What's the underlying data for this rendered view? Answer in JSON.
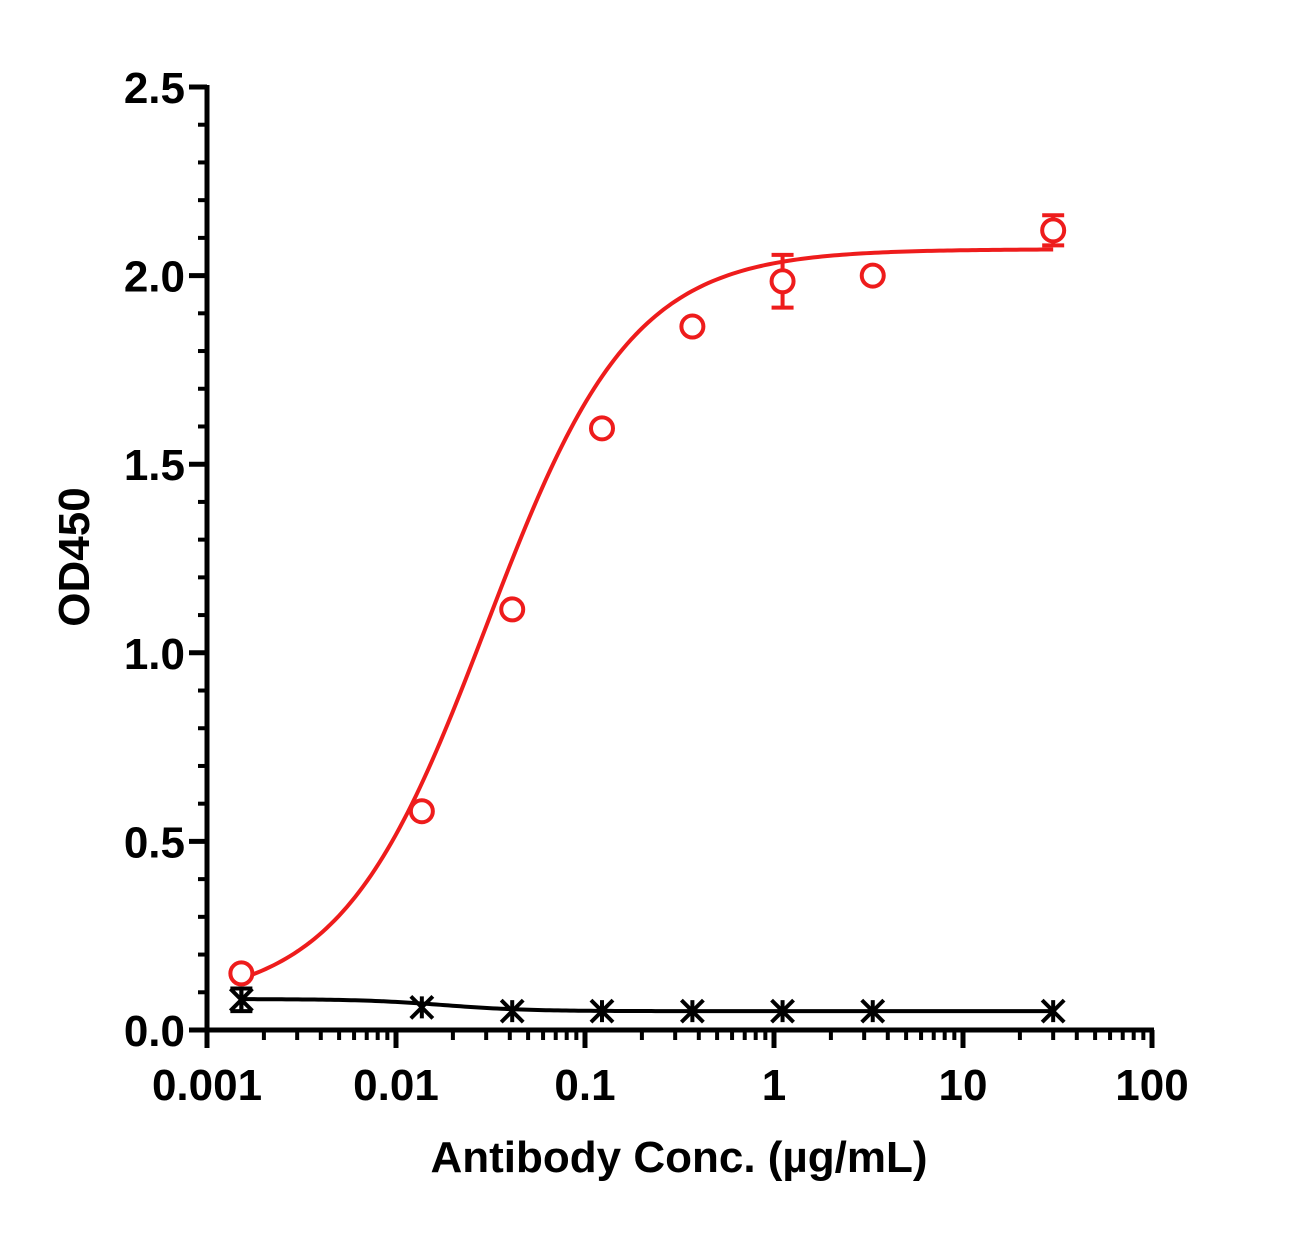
{
  "chart_data": {
    "type": "scatter",
    "title": "",
    "xlabel": "Antibody Conc. (µg/mL)",
    "ylabel": "OD450",
    "xscale": "log",
    "xlim": [
      0.001,
      100
    ],
    "ylim": [
      0,
      2.5
    ],
    "x_ticks": [
      0.001,
      0.01,
      0.1,
      1,
      10,
      100
    ],
    "x_tick_labels": [
      "0.001",
      "0.01",
      "0.1",
      "1",
      "10",
      "100"
    ],
    "y_ticks": [
      0,
      0.5,
      1,
      1.5,
      2,
      2.5
    ],
    "y_tick_labels": [
      "0.0",
      "0.5",
      "1.0",
      "1.5",
      "2.0",
      "2.5"
    ],
    "grid": false,
    "legend": "none",
    "series": [
      {
        "color": "#ee1c1c",
        "marker": "circle",
        "x": [
          0.00152,
          0.0137,
          0.0412,
          0.123,
          0.37,
          1.11,
          3.33,
          30
        ],
        "y": [
          0.15,
          0.58,
          1.115,
          1.595,
          1.865,
          1.985,
          2.0,
          2.12
        ],
        "error": [
          0.0,
          0.0,
          0.0,
          0.0,
          0.0,
          0.07,
          0.0,
          0.04
        ],
        "fit": {
          "model": "4PL",
          "bottom": 0.07,
          "top": 2.07,
          "ec50": 0.03,
          "hill": 1.13
        }
      },
      {
        "color": "#000000",
        "marker": "asterisk",
        "x": [
          0.00152,
          0.0137,
          0.0412,
          0.123,
          0.37,
          1.11,
          3.33,
          30
        ],
        "y": [
          0.08,
          0.06,
          0.05,
          0.05,
          0.05,
          0.05,
          0.05,
          0.05
        ],
        "error": [
          0.03,
          0.0,
          0.0,
          0.0,
          0.0,
          0.0,
          0.0,
          0.0
        ],
        "fit": {
          "model": "4PL",
          "bottom": 0.05,
          "top": 0.082,
          "ec50": 0.018,
          "hill": -2.0
        }
      }
    ]
  }
}
